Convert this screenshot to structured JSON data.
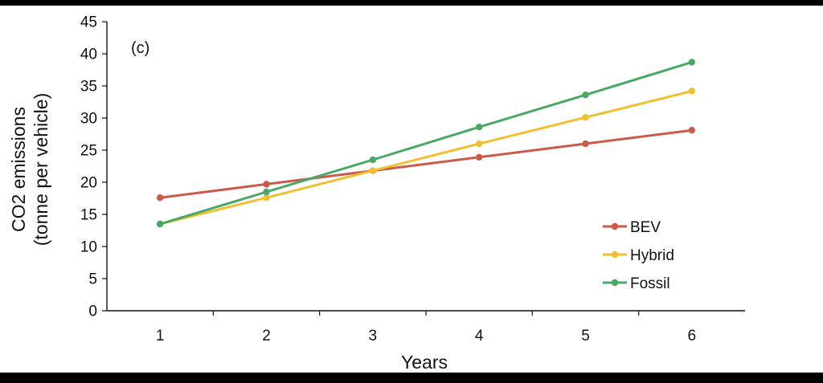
{
  "chart_data": {
    "type": "line",
    "panel_label": "(c)",
    "title": "",
    "xlabel": "Years",
    "ylabel_line1": "CO2 emissions",
    "ylabel_line2": "(tonne per vehicle)",
    "x": [
      1,
      2,
      3,
      4,
      5,
      6
    ],
    "x_tick_labels": [
      "1",
      "2",
      "3",
      "4",
      "5",
      "6"
    ],
    "ylim": [
      0,
      45
    ],
    "y_ticks": [
      0,
      5,
      10,
      15,
      20,
      25,
      30,
      35,
      40,
      45
    ],
    "grid": false,
    "legend_position": "bottom-right",
    "series": [
      {
        "name": "BEV",
        "color": "#cc5a4a",
        "values": [
          17.6,
          19.7,
          21.8,
          23.9,
          26.0,
          28.1
        ]
      },
      {
        "name": "Hybrid",
        "color": "#f0c030",
        "values": [
          13.5,
          17.6,
          21.8,
          26.0,
          30.1,
          34.2
        ]
      },
      {
        "name": "Fossil",
        "color": "#4aa867",
        "values": [
          13.5,
          18.5,
          23.5,
          28.6,
          33.6,
          38.7
        ]
      }
    ]
  }
}
